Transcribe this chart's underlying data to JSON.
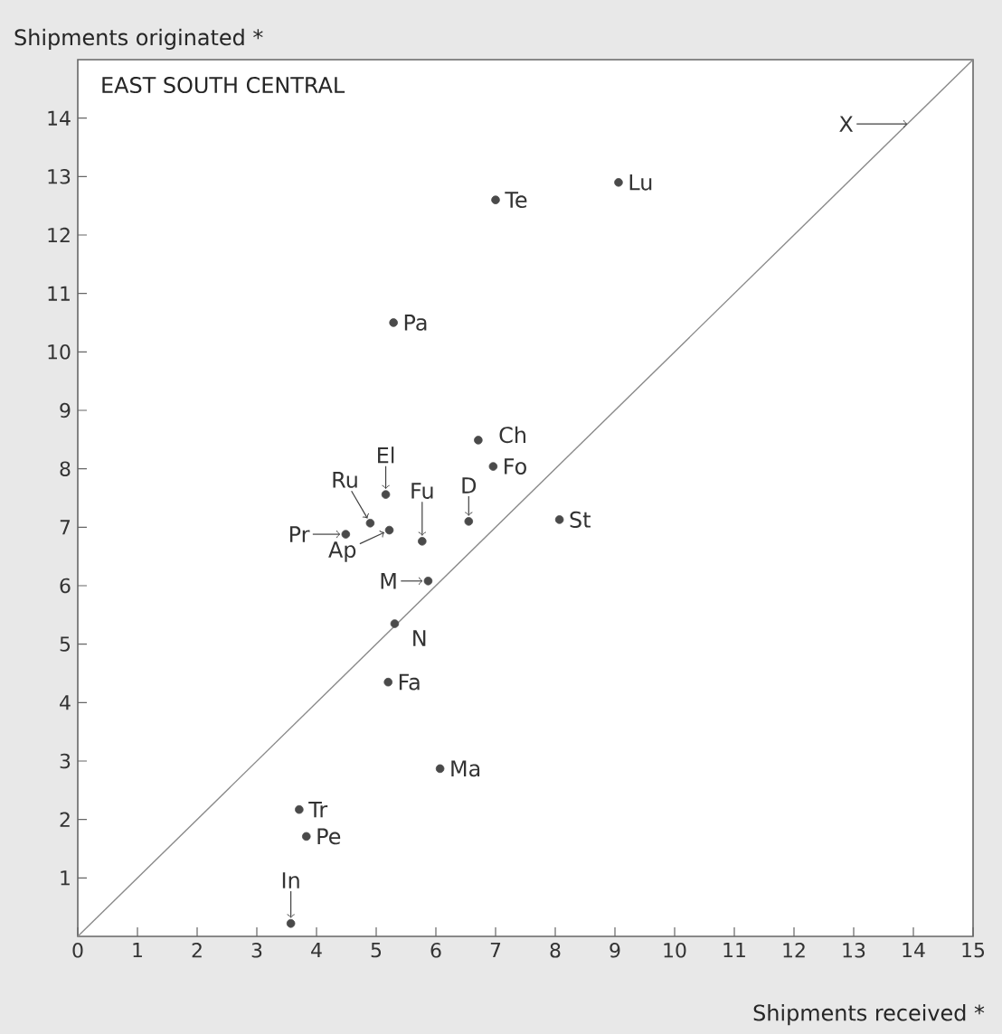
{
  "chart_data": {
    "type": "scatter",
    "title": "EAST SOUTH CENTRAL",
    "xlabel": "Shipments received *",
    "ylabel": "Shipments originated *",
    "xlim": [
      0,
      15
    ],
    "ylim": [
      0,
      15
    ],
    "xticks": [
      0,
      1,
      2,
      3,
      4,
      5,
      6,
      7,
      8,
      9,
      10,
      11,
      12,
      13,
      14,
      15
    ],
    "yticks": [
      1,
      2,
      3,
      4,
      5,
      6,
      7,
      8,
      9,
      10,
      11,
      12,
      13,
      14
    ],
    "series": [
      {
        "type": "line",
        "color": "#8a8a8a",
        "x": [
          0,
          15
        ],
        "values": [
          0,
          15
        ],
        "marker": "none"
      },
      {
        "color": "#4a4a4a",
        "marker": "circle",
        "x": [
          7.0,
          9.06,
          5.29,
          6.71,
          6.96,
          5.16,
          6.55,
          8.07,
          4.9,
          5.22,
          4.49,
          5.77,
          5.87,
          5.31,
          5.2,
          6.07,
          3.71,
          3.83,
          3.57
        ],
        "values": [
          12.6,
          12.9,
          10.5,
          8.49,
          8.04,
          7.56,
          7.1,
          7.13,
          7.07,
          6.95,
          6.88,
          6.76,
          6.08,
          5.35,
          4.35,
          2.87,
          2.17,
          1.71,
          0.22
        ]
      }
    ],
    "annotations": [
      {
        "text": "Te",
        "x": 7.0,
        "y": 12.6
      },
      {
        "text": "Lu",
        "x": 9.06,
        "y": 12.9
      },
      {
        "text": "Pa",
        "x": 5.29,
        "y": 10.5
      },
      {
        "text": "Ch",
        "x": 6.71,
        "y": 8.49
      },
      {
        "text": "Fo",
        "x": 6.96,
        "y": 8.04
      },
      {
        "text": "El",
        "x": 5.16,
        "y": 7.56
      },
      {
        "text": "D",
        "x": 6.55,
        "y": 7.1
      },
      {
        "text": "St",
        "x": 8.07,
        "y": 7.13
      },
      {
        "text": "Ru",
        "x": 4.9,
        "y": 7.07
      },
      {
        "text": "Ap",
        "x": 5.22,
        "y": 6.95
      },
      {
        "text": "Pr",
        "x": 4.49,
        "y": 6.88
      },
      {
        "text": "Fu",
        "x": 5.77,
        "y": 6.76
      },
      {
        "text": "M",
        "x": 5.87,
        "y": 6.08
      },
      {
        "text": "N",
        "x": 5.31,
        "y": 5.35
      },
      {
        "text": "Fa",
        "x": 5.2,
        "y": 4.35
      },
      {
        "text": "Ma",
        "x": 6.07,
        "y": 2.87
      },
      {
        "text": "Tr",
        "x": 3.71,
        "y": 2.17
      },
      {
        "text": "Pe",
        "x": 3.83,
        "y": 1.71
      },
      {
        "text": "In",
        "x": 3.57,
        "y": 0.22
      },
      {
        "text": "X",
        "x": 13.9,
        "y": 13.9
      }
    ]
  }
}
